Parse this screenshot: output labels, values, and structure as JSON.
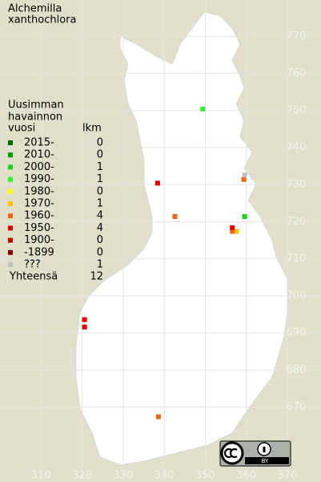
{
  "title": [
    "Alchemilla",
    "xanthochlora"
  ],
  "legend": {
    "heading": [
      "Uusimman",
      "havainnon",
      "vuosi"
    ],
    "count_heading": "lkm",
    "rows": [
      {
        "label": "2015-",
        "color": "#006600",
        "count": 0,
        "points": []
      },
      {
        "label": "2010-",
        "color": "#009900",
        "count": 0,
        "points": []
      },
      {
        "label": "2000-",
        "color": "#22cc22",
        "count": 1,
        "points": [
          {
            "x": 359.6,
            "y": 721.4
          }
        ]
      },
      {
        "label": "1990-",
        "color": "#33ee33",
        "count": 1,
        "points": [
          {
            "x": 349.4,
            "y": 750.4
          }
        ]
      },
      {
        "label": "1980-",
        "color": "#ffff00",
        "count": 0,
        "points": []
      },
      {
        "label": "1970-",
        "color": "#ffc000",
        "count": 1,
        "points": [
          {
            "x": 357.6,
            "y": 717.4
          }
        ]
      },
      {
        "label": "1960-",
        "color": "#ee6611",
        "count": 4,
        "points": [
          {
            "x": 359.4,
            "y": 731.4
          },
          {
            "x": 342.6,
            "y": 721.4
          },
          {
            "x": 356.6,
            "y": 717.4
          },
          {
            "x": 338.6,
            "y": 667.4
          }
        ]
      },
      {
        "label": "1950-",
        "color": "#dd0000",
        "count": 4,
        "points": [
          {
            "x": 338.4,
            "y": 730.4
          },
          {
            "x": 356.6,
            "y": 718.4
          },
          {
            "x": 320.6,
            "y": 693.6
          },
          {
            "x": 320.6,
            "y": 691.6
          }
        ]
      },
      {
        "label": "1900-",
        "color": "#bb0000",
        "count": 0,
        "points": []
      },
      {
        "label": "-1899",
        "color": "#880000",
        "count": 0,
        "points": []
      },
      {
        "label": "???",
        "color": "#c0c0c0",
        "count": 1,
        "points": [
          {
            "x": 359.6,
            "y": 732.6
          }
        ]
      }
    ],
    "total_label": "Yhteensä",
    "total": 12
  },
  "axes": {
    "xticks": [
      310,
      320,
      330,
      340,
      350,
      360,
      370
    ],
    "yticks": [
      670,
      680,
      690,
      700,
      710,
      720,
      730,
      740,
      750,
      760,
      770
    ],
    "xlim": [
      300,
      378.2
    ],
    "ylim": [
      649.8,
      779.8
    ]
  },
  "license": "BY"
}
